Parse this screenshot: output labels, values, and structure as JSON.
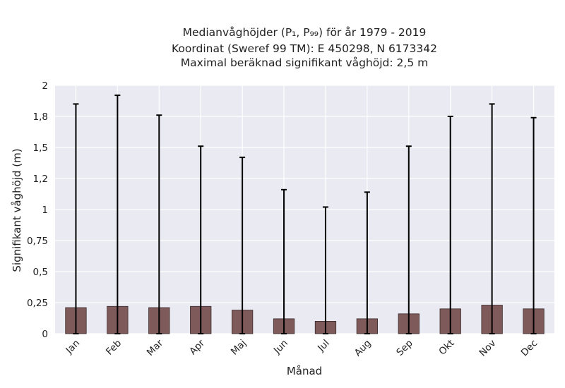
{
  "chart_data": {
    "type": "bar",
    "title_lines": [
      "Medianvåghöjder (P₁, P₉₉) för år 1979 - 2019",
      "Koordinat (Sweref 99 TM): E 450298, N 6173342",
      "Maximal beräknad signifikant våghöjd: 2,5 m"
    ],
    "xlabel": "Månad",
    "ylabel": "Signifikant våghöjd (m)",
    "categories": [
      "Jan",
      "Feb",
      "Mar",
      "Apr",
      "Maj",
      "Jun",
      "Jul",
      "Aug",
      "Sep",
      "Okt",
      "Nov",
      "Dec"
    ],
    "values": [
      0.21,
      0.22,
      0.21,
      0.22,
      0.19,
      0.12,
      0.1,
      0.12,
      0.16,
      0.2,
      0.23,
      0.2
    ],
    "error_low": [
      0.0,
      0.0,
      0.0,
      0.0,
      0.0,
      0.0,
      0.0,
      0.0,
      0.0,
      0.0,
      0.0,
      0.0
    ],
    "error_high": [
      1.85,
      1.92,
      1.76,
      1.51,
      1.42,
      1.16,
      1.02,
      1.14,
      1.51,
      1.75,
      1.85,
      1.74
    ],
    "ylim": [
      0,
      2
    ],
    "yticks": [
      0,
      0.25,
      0.5,
      0.75,
      1,
      1.25,
      1.5,
      1.75,
      2
    ],
    "ytick_labels": [
      "0",
      "0,25",
      "0,5",
      "0,75",
      "1",
      "1,2",
      "1,5",
      "1,8",
      "2"
    ],
    "grid": true,
    "bar_color": "#7f5a5a",
    "background_color": "#eaeaf2"
  }
}
